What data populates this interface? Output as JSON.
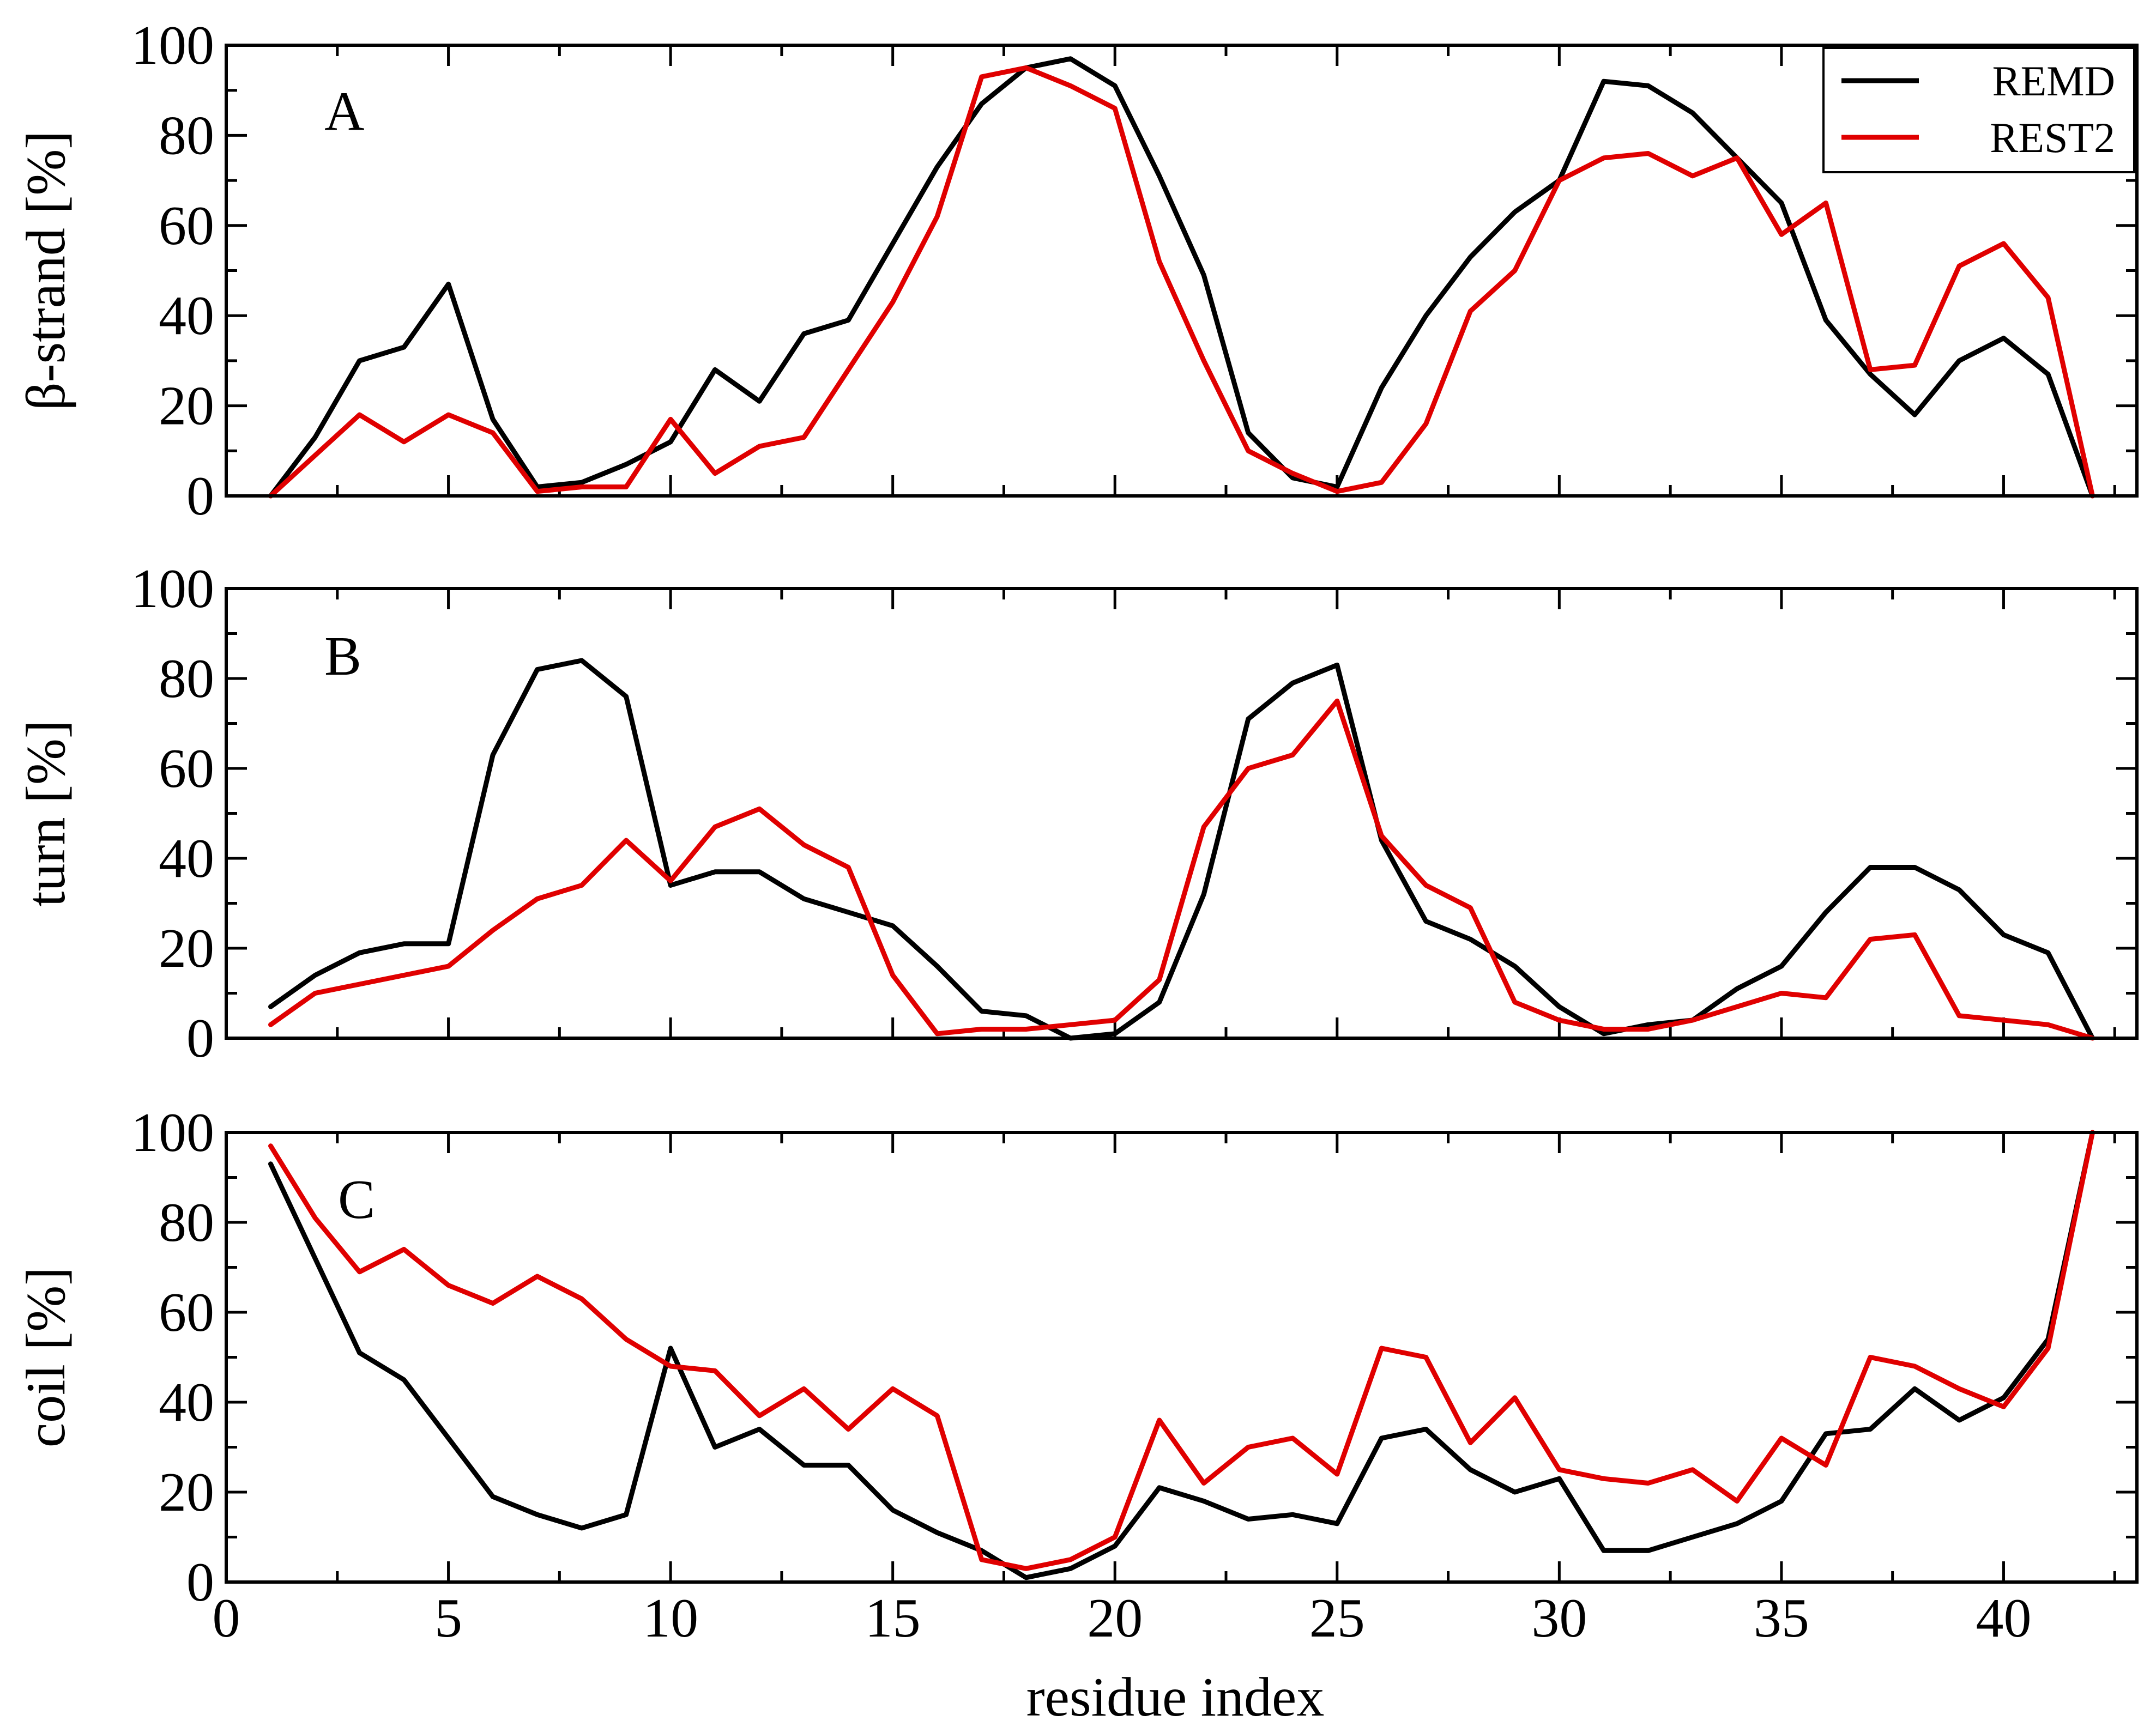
{
  "chart_data": [
    {
      "type": "line",
      "panel_label": "A",
      "ylabel": "β-strand [%]",
      "xlabel": "",
      "xlim": [
        0,
        43
      ],
      "ylim": [
        0,
        100
      ],
      "y_ticks": [
        "0",
        "20",
        "40",
        "60",
        "80",
        "100"
      ],
      "legend": {
        "position": "top-right",
        "entries": [
          "REMD",
          "REST2"
        ]
      },
      "series": [
        {
          "name": "REMD",
          "color": "#000000",
          "x": [
            1,
            2,
            3,
            4,
            5,
            6,
            7,
            8,
            9,
            10,
            11,
            12,
            13,
            14,
            15,
            16,
            17,
            18,
            19,
            20,
            21,
            22,
            23,
            24,
            25,
            26,
            27,
            28,
            29,
            30,
            31,
            32,
            33,
            34,
            35,
            36,
            37,
            38,
            39,
            40,
            41,
            42
          ],
          "values": [
            0,
            13,
            30,
            33,
            47,
            17,
            2,
            3,
            7,
            12,
            28,
            21,
            36,
            39,
            56,
            73,
            87,
            95,
            97,
            91,
            71,
            49,
            14,
            4,
            2,
            24,
            40,
            53,
            63,
            70,
            92,
            91,
            85,
            75,
            65,
            39,
            27,
            18,
            30,
            35,
            27,
            0
          ]
        },
        {
          "name": "REST2",
          "color": "#e00000",
          "x": [
            1,
            2,
            3,
            4,
            5,
            6,
            7,
            8,
            9,
            10,
            11,
            12,
            13,
            14,
            15,
            16,
            17,
            18,
            19,
            20,
            21,
            22,
            23,
            24,
            25,
            26,
            27,
            28,
            29,
            30,
            31,
            32,
            33,
            34,
            35,
            36,
            37,
            38,
            39,
            40,
            41,
            42
          ],
          "values": [
            0,
            9,
            18,
            12,
            18,
            14,
            1,
            2,
            2,
            17,
            5,
            11,
            13,
            28,
            43,
            62,
            93,
            95,
            91,
            86,
            52,
            30,
            10,
            5,
            1,
            3,
            16,
            41,
            50,
            70,
            75,
            76,
            71,
            75,
            58,
            65,
            28,
            29,
            51,
            56,
            44,
            0
          ]
        }
      ]
    },
    {
      "type": "line",
      "panel_label": "B",
      "ylabel": "turn [%]",
      "xlabel": "",
      "xlim": [
        0,
        43
      ],
      "ylim": [
        0,
        100
      ],
      "y_ticks": [
        "0",
        "20",
        "40",
        "60",
        "80",
        "100"
      ],
      "series": [
        {
          "name": "REMD",
          "color": "#000000",
          "x": [
            1,
            2,
            3,
            4,
            5,
            6,
            7,
            8,
            9,
            10,
            11,
            12,
            13,
            14,
            15,
            16,
            17,
            18,
            19,
            20,
            21,
            22,
            23,
            24,
            25,
            26,
            27,
            28,
            29,
            30,
            31,
            32,
            33,
            34,
            35,
            36,
            37,
            38,
            39,
            40,
            41,
            42
          ],
          "values": [
            7,
            14,
            19,
            21,
            21,
            63,
            82,
            84,
            76,
            34,
            37,
            37,
            31,
            28,
            25,
            16,
            6,
            5,
            0,
            1,
            8,
            32,
            71,
            79,
            83,
            44,
            26,
            22,
            16,
            7,
            1,
            3,
            4,
            11,
            16,
            28,
            38,
            38,
            33,
            23,
            19,
            0
          ]
        },
        {
          "name": "REST2",
          "color": "#e00000",
          "x": [
            1,
            2,
            3,
            4,
            5,
            6,
            7,
            8,
            9,
            10,
            11,
            12,
            13,
            14,
            15,
            16,
            17,
            18,
            19,
            20,
            21,
            22,
            23,
            24,
            25,
            26,
            27,
            28,
            29,
            30,
            31,
            32,
            33,
            34,
            35,
            36,
            37,
            38,
            39,
            40,
            41,
            42
          ],
          "values": [
            3,
            10,
            12,
            14,
            16,
            24,
            31,
            34,
            44,
            35,
            47,
            51,
            43,
            38,
            14,
            1,
            2,
            2,
            3,
            4,
            13,
            47,
            60,
            63,
            75,
            45,
            34,
            29,
            8,
            4,
            2,
            2,
            4,
            7,
            10,
            9,
            22,
            23,
            5,
            4,
            3,
            0
          ]
        }
      ]
    },
    {
      "type": "line",
      "panel_label": "C",
      "ylabel": "coil [%]",
      "xlabel": "residue index",
      "xlim": [
        0,
        43
      ],
      "ylim": [
        0,
        100
      ],
      "x_ticks": [
        "0",
        "5",
        "10",
        "15",
        "20",
        "25",
        "30",
        "35",
        "40"
      ],
      "y_ticks": [
        "0",
        "20",
        "40",
        "60",
        "80",
        "100"
      ],
      "series": [
        {
          "name": "REMD",
          "color": "#000000",
          "x": [
            1,
            2,
            3,
            4,
            5,
            6,
            7,
            8,
            9,
            10,
            11,
            12,
            13,
            14,
            15,
            16,
            17,
            18,
            19,
            20,
            21,
            22,
            23,
            24,
            25,
            26,
            27,
            28,
            29,
            30,
            31,
            32,
            33,
            34,
            35,
            36,
            37,
            38,
            39,
            40,
            41,
            42
          ],
          "values": [
            93,
            72,
            51,
            45,
            32,
            19,
            15,
            12,
            15,
            52,
            30,
            34,
            26,
            26,
            16,
            11,
            7,
            1,
            3,
            8,
            21,
            18,
            14,
            15,
            13,
            32,
            34,
            25,
            20,
            23,
            7,
            7,
            10,
            13,
            18,
            33,
            34,
            43,
            36,
            41,
            54,
            100
          ]
        },
        {
          "name": "REST2",
          "color": "#e00000",
          "x": [
            1,
            2,
            3,
            4,
            5,
            6,
            7,
            8,
            9,
            10,
            11,
            12,
            13,
            14,
            15,
            16,
            17,
            18,
            19,
            20,
            21,
            22,
            23,
            24,
            25,
            26,
            27,
            28,
            29,
            30,
            31,
            32,
            33,
            34,
            35,
            36,
            37,
            38,
            39,
            40,
            41,
            42
          ],
          "values": [
            97,
            81,
            69,
            74,
            66,
            62,
            68,
            63,
            54,
            48,
            47,
            37,
            43,
            34,
            43,
            37,
            5,
            3,
            5,
            10,
            36,
            22,
            30,
            32,
            24,
            52,
            50,
            31,
            41,
            25,
            23,
            22,
            25,
            18,
            32,
            26,
            50,
            48,
            43,
            39,
            52,
            100
          ]
        }
      ]
    }
  ]
}
